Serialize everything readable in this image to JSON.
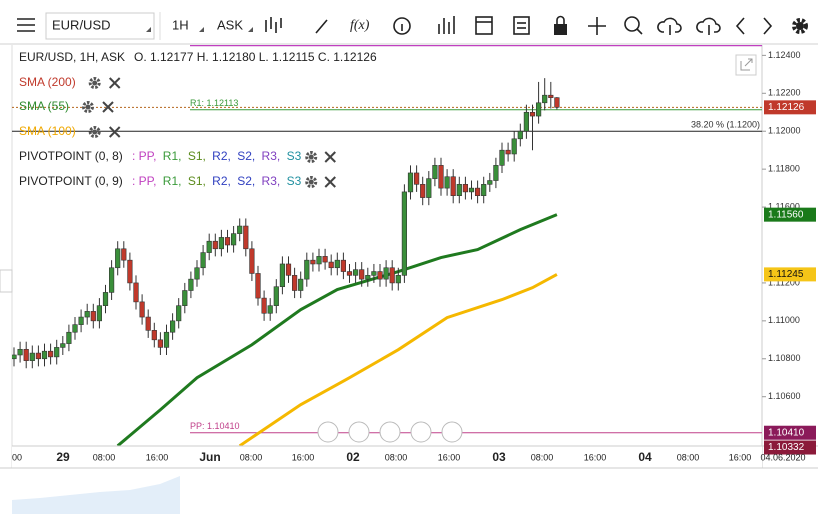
{
  "toolbar": {
    "symbol": "EUR/USD",
    "interval": "1H",
    "price_type": "ASK"
  },
  "legend": {
    "header": "EUR/USD, 1H, ASK",
    "ohlc": "O. 1.12177 H. 1.12180 L. 1.12115 C. 1.12126",
    "indicators": [
      {
        "name": "SMA (200)",
        "color": "#c0392b"
      },
      {
        "name": "SMA (55)",
        "color": "#2e8b2e"
      },
      {
        "name": "SMA (100)",
        "color": "#f0a800"
      }
    ],
    "pivots": [
      {
        "name": "PIVOTPOINT (0, 8)",
        "parts": [
          ": PP, ",
          "R1, ",
          "S1, ",
          "R2, ",
          "S2, ",
          "R3, ",
          "S3"
        ]
      },
      {
        "name": "PIVOTPOINT (0, 9)",
        "parts": [
          ": PP, ",
          "R1, ",
          "S1, ",
          "R2, ",
          "S2, ",
          "R3, ",
          "S3"
        ]
      }
    ],
    "part_colors": [
      "#c040c0",
      "#3a9a3a",
      "#5a8a1a",
      "#3040c0",
      "#3040c0",
      "#8040c0",
      "#2090a0"
    ]
  },
  "chart_data": {
    "type": "candlestick",
    "up_color": "#3a8f3a",
    "down_color": "#c0392b",
    "open": [
      1.108,
      1.1082,
      1.1085,
      1.1079,
      1.1083,
      1.108,
      1.1084,
      1.1081,
      1.1086,
      1.1088,
      1.1094,
      1.1098,
      1.1102,
      1.1105,
      1.11,
      1.1108,
      1.1115,
      1.1128,
      1.1138,
      1.1132,
      1.112,
      1.111,
      1.1102,
      1.1095,
      1.109,
      1.1086,
      1.1094,
      1.11,
      1.1108,
      1.1116,
      1.1122,
      1.1128,
      1.1136,
      1.1142,
      1.1138,
      1.1144,
      1.114,
      1.1146,
      1.115,
      1.1138,
      1.1125,
      1.1112,
      1.1104,
      1.1108,
      1.1118,
      1.113,
      1.1124,
      1.1116,
      1.1122,
      1.1132,
      1.113,
      1.1134,
      1.1131,
      1.1128,
      1.1132,
      1.1126,
      1.1124,
      1.1127,
      1.1122,
      1.1124,
      1.1126,
      1.1122,
      1.1128,
      1.112,
      1.1124,
      1.1168,
      1.1178,
      1.1172,
      1.1165,
      1.1175,
      1.1182,
      1.117,
      1.1176,
      1.1166,
      1.1172,
      1.1168,
      1.117,
      1.1166,
      1.1172,
      1.1174,
      1.1182,
      1.119,
      1.1188,
      1.1196,
      1.12,
      1.121,
      1.1208,
      1.1215,
      1.1219,
      1.12177
    ],
    "high": [
      1.1086,
      1.1089,
      1.1089,
      1.1087,
      1.1087,
      1.1088,
      1.1088,
      1.109,
      1.1092,
      1.1098,
      1.1102,
      1.1106,
      1.1109,
      1.1109,
      1.1112,
      1.1119,
      1.1132,
      1.1142,
      1.1142,
      1.1136,
      1.1124,
      1.1114,
      1.1106,
      1.1099,
      1.1094,
      1.1098,
      1.1104,
      1.1112,
      1.112,
      1.1126,
      1.1132,
      1.114,
      1.1146,
      1.1146,
      1.1148,
      1.1148,
      1.115,
      1.1154,
      1.1154,
      1.1142,
      1.1129,
      1.1116,
      1.1112,
      1.1122,
      1.1134,
      1.1134,
      1.1128,
      1.1126,
      1.1136,
      1.1136,
      1.1138,
      1.1138,
      1.1135,
      1.1136,
      1.1136,
      1.113,
      1.1131,
      1.1131,
      1.1128,
      1.113,
      1.113,
      1.1132,
      1.1132,
      1.1128,
      1.1172,
      1.1182,
      1.1182,
      1.1176,
      1.1179,
      1.1186,
      1.1186,
      1.118,
      1.118,
      1.1176,
      1.1176,
      1.1174,
      1.1174,
      1.1176,
      1.1178,
      1.1186,
      1.1194,
      1.1194,
      1.12,
      1.1204,
      1.1214,
      1.1214,
      1.1226,
      1.1228,
      1.1226,
      1.1218
    ],
    "low": [
      1.1076,
      1.1078,
      1.1075,
      1.1075,
      1.1076,
      1.1076,
      1.1077,
      1.1077,
      1.1082,
      1.1084,
      1.109,
      1.1094,
      1.1098,
      1.1096,
      1.1096,
      1.1104,
      1.1111,
      1.1124,
      1.1128,
      1.1116,
      1.1106,
      1.1098,
      1.1091,
      1.1086,
      1.1082,
      1.1082,
      1.109,
      1.1096,
      1.1104,
      1.1112,
      1.1118,
      1.1124,
      1.1132,
      1.1134,
      1.1134,
      1.1136,
      1.1136,
      1.1142,
      1.1134,
      1.1121,
      1.1108,
      1.11,
      1.11,
      1.1104,
      1.1114,
      1.112,
      1.1112,
      1.1112,
      1.1118,
      1.1126,
      1.1126,
      1.1127,
      1.1124,
      1.1124,
      1.1122,
      1.112,
      1.112,
      1.1118,
      1.1118,
      1.112,
      1.1118,
      1.1118,
      1.1116,
      1.1116,
      1.112,
      1.1164,
      1.1168,
      1.1161,
      1.1161,
      1.1171,
      1.1166,
      1.1166,
      1.1162,
      1.1162,
      1.1164,
      1.1164,
      1.1162,
      1.1162,
      1.1168,
      1.117,
      1.1178,
      1.1184,
      1.1184,
      1.1192,
      1.1196,
      1.119,
      1.1204,
      1.1211,
      1.1212,
      1.12115
    ],
    "close": [
      1.1082,
      1.1085,
      1.1079,
      1.1083,
      1.108,
      1.1084,
      1.1081,
      1.1086,
      1.1088,
      1.1094,
      1.1098,
      1.1102,
      1.1105,
      1.11,
      1.1108,
      1.1115,
      1.1128,
      1.1138,
      1.1132,
      1.112,
      1.111,
      1.1102,
      1.1095,
      1.109,
      1.1086,
      1.1094,
      1.11,
      1.1108,
      1.1116,
      1.1122,
      1.1128,
      1.1136,
      1.1142,
      1.1138,
      1.1144,
      1.114,
      1.1146,
      1.115,
      1.1138,
      1.1125,
      1.1112,
      1.1104,
      1.1108,
      1.1118,
      1.113,
      1.1124,
      1.1116,
      1.1122,
      1.1132,
      1.113,
      1.1134,
      1.1131,
      1.1128,
      1.1132,
      1.1126,
      1.1124,
      1.1127,
      1.1122,
      1.1124,
      1.1126,
      1.1122,
      1.1128,
      1.112,
      1.1124,
      1.1168,
      1.1178,
      1.1172,
      1.1165,
      1.1175,
      1.1182,
      1.117,
      1.1176,
      1.1166,
      1.1172,
      1.1168,
      1.117,
      1.1166,
      1.1172,
      1.1174,
      1.1182,
      1.119,
      1.1188,
      1.1196,
      1.12,
      1.121,
      1.1208,
      1.1215,
      1.1219,
      1.12177,
      1.12126
    ],
    "series": [
      {
        "name": "SMA (55)",
        "color": "#1f7a1f",
        "x": [
          17,
          24,
          30,
          39,
          47,
          53,
          63,
          70,
          76,
          83,
          89
        ],
        "values": [
          1.10341,
          1.10531,
          1.107,
          1.10874,
          1.11059,
          1.11165,
          1.1126,
          1.11334,
          1.11376,
          1.11481,
          1.1156
        ]
      },
      {
        "name": "SMA (100)",
        "color": "#f5b800",
        "x": [
          37,
          47,
          55,
          63,
          71,
          80,
          85,
          89
        ],
        "values": [
          1.10341,
          1.10558,
          1.107,
          1.10848,
          1.11017,
          1.11112,
          1.11175,
          1.11245
        ]
      }
    ],
    "levels": [
      {
        "label": "R1: 1.12113",
        "value": 1.12113,
        "color": "#3a9a3a",
        "from_left": false
      },
      {
        "label": "38.20 % (1.1200)",
        "value": 1.12,
        "color": "#222222",
        "from_left": true
      },
      {
        "label": "PP: 1.10410",
        "value": 1.1041,
        "color": "#c0408a",
        "from_left": false
      }
    ],
    "price_labels": [
      {
        "value": 1.12126,
        "label": "1.12126",
        "color": "#c0392b"
      },
      {
        "value": 1.1156,
        "label": "1.11560",
        "color": "#1a7a1a"
      },
      {
        "value": 1.11245,
        "label": "1.11245",
        "color": "#f5c518"
      },
      {
        "value": 1.1041,
        "label": "1.10410",
        "color": "#8b1a5a"
      },
      {
        "value": 1.10332,
        "label": "1.10332",
        "color": "#8b1a3a"
      }
    ],
    "ylim": [
      1.1034,
      1.1246
    ],
    "yticks": [
      {
        "value": 1.124,
        "label": "1.12400"
      },
      {
        "value": 1.122,
        "label": "1.12200"
      },
      {
        "value": 1.12,
        "label": "1.12000"
      },
      {
        "value": 1.118,
        "label": "1.11800"
      },
      {
        "value": 1.116,
        "label": "1.11600"
      },
      {
        "value": 1.112,
        "label": "1.11200"
      },
      {
        "value": 1.11,
        "label": "1.11000"
      },
      {
        "value": 1.108,
        "label": "1.10800"
      },
      {
        "value": 1.106,
        "label": "1.10600"
      }
    ],
    "categories": [
      "00",
      "29",
      "08:00",
      "16:00",
      "Jun",
      "08:00",
      "16:00",
      "02",
      "08:00",
      "16:00",
      "03",
      "08:00",
      "16:00",
      "04",
      "08:00",
      "16:00",
      "04.06.2020"
    ],
    "grid": false
  }
}
